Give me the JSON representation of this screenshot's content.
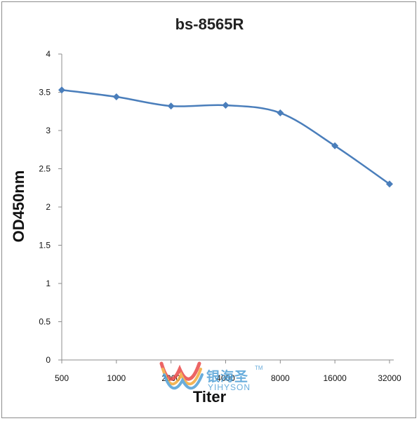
{
  "chart_data": {
    "type": "line",
    "title": "bs-8565R",
    "xlabel": "Titer",
    "ylabel": "OD450nm",
    "categories": [
      "500",
      "1000",
      "2000",
      "4000",
      "8000",
      "16000",
      "32000"
    ],
    "series": [
      {
        "values": [
          3.53,
          3.44,
          3.32,
          3.33,
          3.23,
          2.8,
          2.3
        ]
      }
    ],
    "yticks": [
      "0",
      "0.5",
      "1",
      "1.5",
      "2",
      "2.5",
      "3",
      "3.5",
      "4"
    ],
    "ylim": [
      0,
      4
    ],
    "grid": false,
    "legend": "none",
    "line_color": "#4a7ebb"
  },
  "watermark": {
    "brand_cn": "银海圣",
    "brand_en": "YIHYSON",
    "trademark": "TM"
  }
}
